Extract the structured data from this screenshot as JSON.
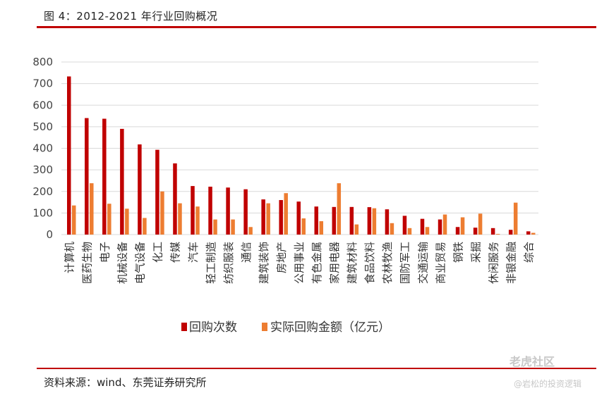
{
  "figure": {
    "title": "图 4：2012-2021 年行业回购概况",
    "source": "资料来源：wind、东莞证券研究所"
  },
  "watermark": {
    "main": "老虎社区",
    "sub": "@岩松的投资逻辑"
  },
  "colors": {
    "accent": "#c00000",
    "series1": "#c00000",
    "series2": "#ed7d31",
    "grid": "#d9d9d9"
  },
  "chart_data": {
    "type": "bar",
    "title": "",
    "xlabel": "",
    "ylabel": "",
    "ylim": [
      0,
      800
    ],
    "yticks": [
      0,
      100,
      200,
      300,
      400,
      500,
      600,
      700,
      800
    ],
    "grid": true,
    "legend_position": "bottom",
    "categories": [
      "计算机",
      "医药生物",
      "电子",
      "机械设备",
      "电气设备",
      "化工",
      "传媒",
      "汽车",
      "轻工制造",
      "纺织服装",
      "通信",
      "建筑装饰",
      "房地产",
      "公用事业",
      "有色金属",
      "家用电器",
      "建筑材料",
      "食品饮料",
      "农林牧渔",
      "国防军工",
      "交通运输",
      "商业贸易",
      "钢铁",
      "采掘",
      "休闲服务",
      "非银金融",
      "综合"
    ],
    "series": [
      {
        "name": "回购次数",
        "values": [
          733,
          540,
          537,
          490,
          418,
          393,
          330,
          225,
          222,
          218,
          210,
          163,
          160,
          153,
          130,
          128,
          128,
          127,
          117,
          87,
          73,
          70,
          35,
          32,
          30,
          22,
          15
        ]
      },
      {
        "name": "实际回购金额（亿元）",
        "values": [
          135,
          238,
          143,
          120,
          77,
          200,
          145,
          130,
          70,
          70,
          35,
          145,
          192,
          75,
          62,
          238,
          47,
          122,
          53,
          30,
          35,
          93,
          80,
          97,
          3,
          148,
          8
        ]
      }
    ]
  }
}
